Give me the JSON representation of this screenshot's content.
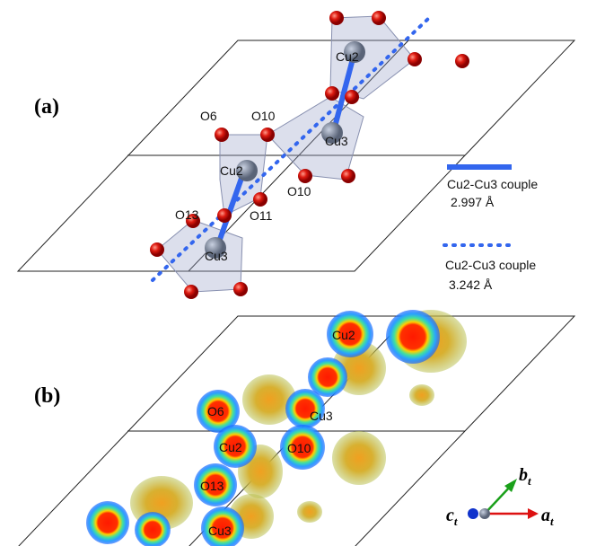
{
  "panel_a": {
    "label": "(a)",
    "atoms": [
      "Cu2",
      "O6",
      "O10",
      "Cu3",
      "Cu2",
      "O10",
      "O13",
      "O11",
      "Cu3"
    ],
    "legend": [
      {
        "name": "Cu2-Cu3 couple",
        "distance": "2.997 Å"
      },
      {
        "name": "Cu2-Cu3 couple",
        "distance": "3.242 Å"
      }
    ]
  },
  "panel_b": {
    "label": "(b)",
    "atoms": [
      "Cu2",
      "O6",
      "Cu3",
      "Cu2",
      "O10",
      "O13",
      "Cu3"
    ],
    "axes": [
      {
        "symbol": "b",
        "subscript": "t"
      },
      {
        "symbol": "c",
        "subscript": "t"
      },
      {
        "symbol": "a",
        "subscript": "t"
      }
    ]
  }
}
